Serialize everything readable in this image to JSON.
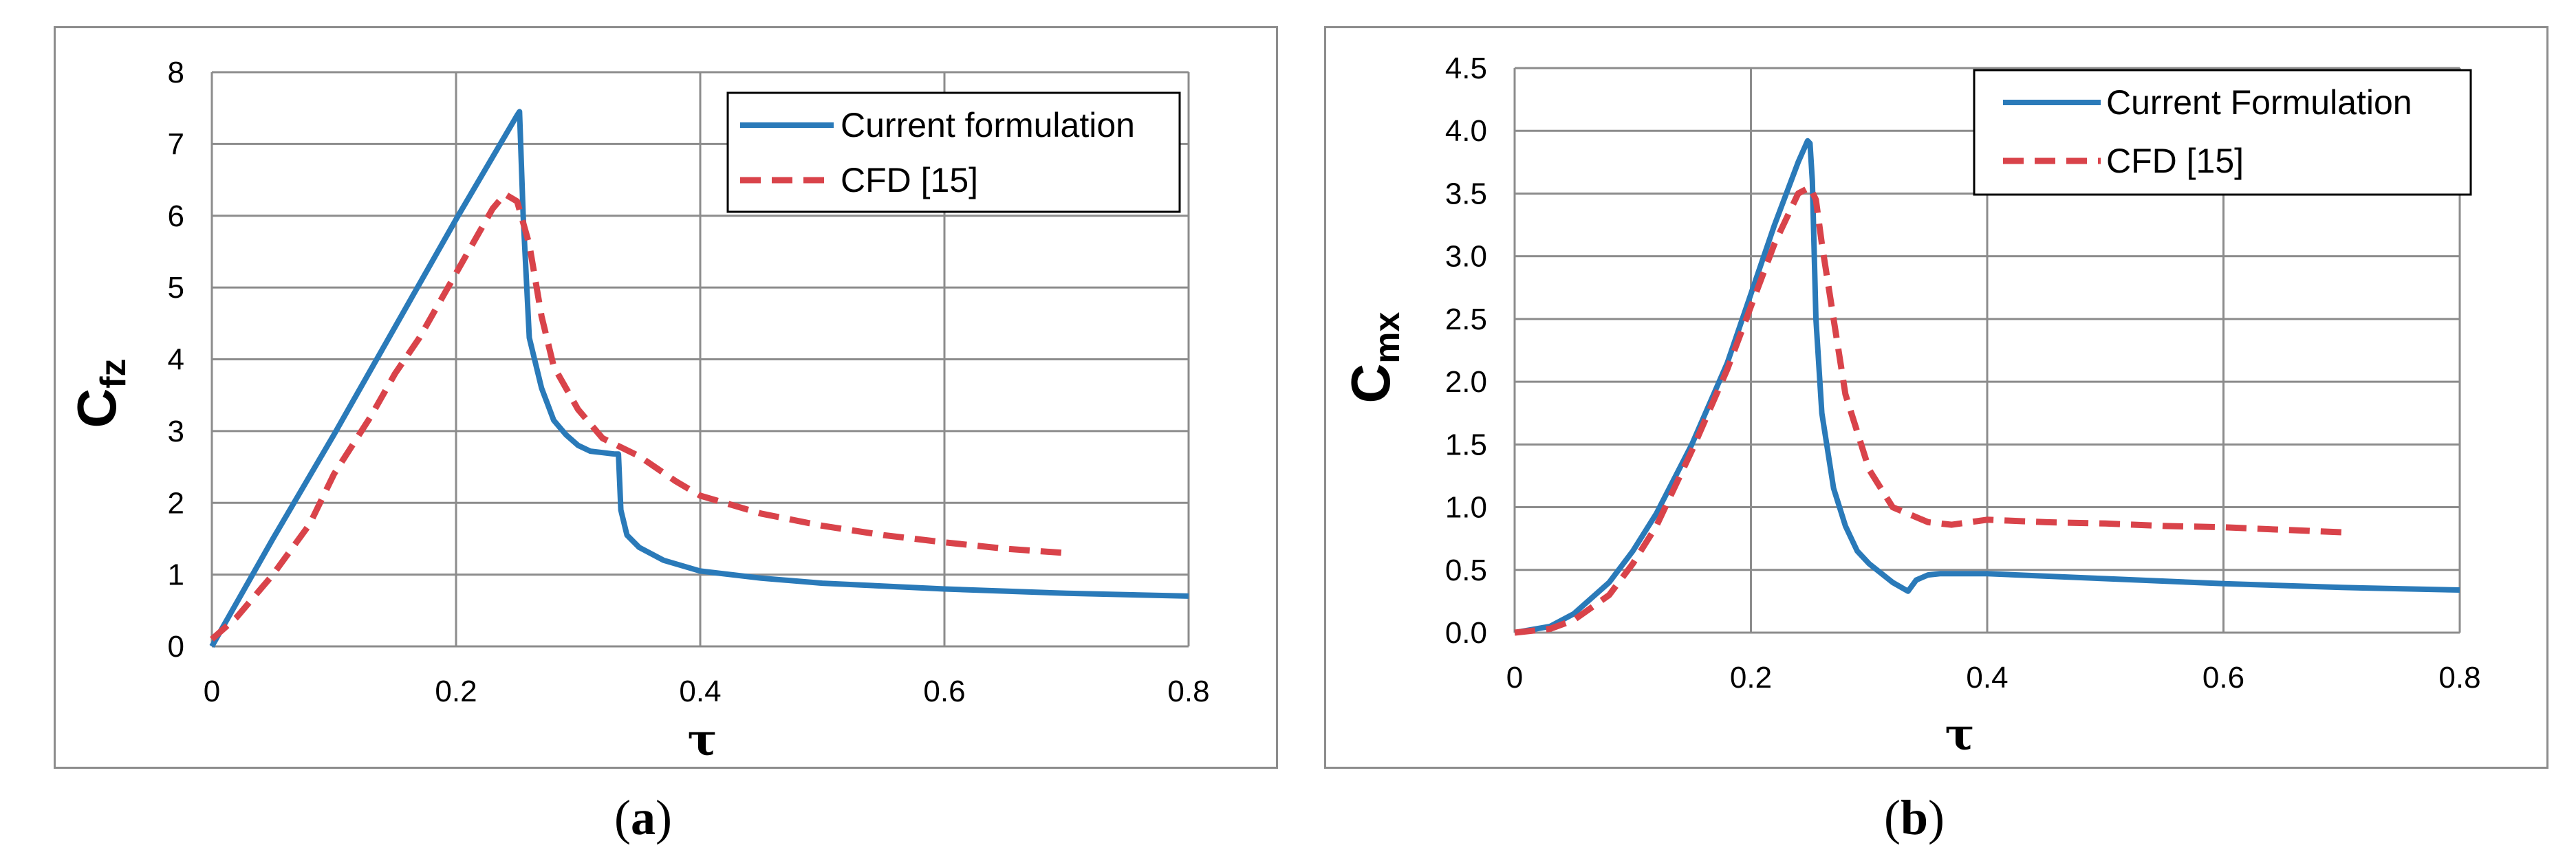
{
  "chart_data": [
    {
      "id": "a",
      "type": "line",
      "caption": "a",
      "xlabel": "τ",
      "ylabel_main": "C",
      "ylabel_sub": "fz",
      "xlim": [
        0,
        0.8
      ],
      "ylim": [
        0,
        8
      ],
      "xticks": [
        "0",
        "0.2",
        "0.4",
        "0.6",
        "0.8"
      ],
      "xtick_values": [
        0,
        0.2,
        0.4,
        0.6,
        0.8
      ],
      "yticks": [
        "0",
        "1",
        "2",
        "3",
        "4",
        "5",
        "6",
        "7",
        "8"
      ],
      "ytick_values": [
        0,
        1,
        2,
        3,
        4,
        5,
        6,
        7,
        8
      ],
      "grid": true,
      "legend_position": "top-right",
      "series": [
        {
          "name": "Current formulation",
          "color": "#2a7ab9",
          "style": "solid",
          "x": [
            0,
            0.05,
            0.1,
            0.15,
            0.2,
            0.25,
            0.252,
            0.255,
            0.26,
            0.27,
            0.28,
            0.29,
            0.3,
            0.31,
            0.32,
            0.33,
            0.333,
            0.335,
            0.34,
            0.35,
            0.37,
            0.4,
            0.45,
            0.5,
            0.6,
            0.7,
            0.8
          ],
          "y": [
            0,
            1.5,
            2.95,
            4.45,
            5.95,
            7.4,
            7.45,
            6.0,
            4.3,
            3.6,
            3.15,
            2.95,
            2.8,
            2.72,
            2.7,
            2.68,
            2.68,
            1.9,
            1.55,
            1.38,
            1.2,
            1.05,
            0.95,
            0.88,
            0.8,
            0.74,
            0.7
          ]
        },
        {
          "name": "CFD [15]",
          "color": "#d9434a",
          "style": "dashed",
          "x": [
            0,
            0.02,
            0.05,
            0.08,
            0.1,
            0.13,
            0.15,
            0.17,
            0.2,
            0.22,
            0.23,
            0.24,
            0.25,
            0.26,
            0.27,
            0.28,
            0.3,
            0.32,
            0.35,
            0.38,
            0.4,
            0.45,
            0.5,
            0.55,
            0.6,
            0.65,
            0.7
          ],
          "y": [
            0.1,
            0.4,
            1.0,
            1.7,
            2.4,
            3.2,
            3.8,
            4.3,
            5.2,
            5.8,
            6.1,
            6.3,
            6.2,
            5.6,
            4.6,
            3.9,
            3.3,
            2.9,
            2.65,
            2.3,
            2.1,
            1.85,
            1.68,
            1.55,
            1.45,
            1.36,
            1.3
          ]
        }
      ]
    },
    {
      "id": "b",
      "type": "line",
      "caption": "b",
      "xlabel": "τ",
      "ylabel_main": "C",
      "ylabel_sub": "mx",
      "xlim": [
        0,
        0.8
      ],
      "ylim": [
        0,
        4.5
      ],
      "xticks": [
        "0",
        "0.2",
        "0.4",
        "0.6",
        "0.8"
      ],
      "xtick_values": [
        0,
        0.2,
        0.4,
        0.6,
        0.8
      ],
      "yticks": [
        "0.0",
        "0.5",
        "1.0",
        "1.5",
        "2.0",
        "2.5",
        "3.0",
        "3.5",
        "4.0",
        "4.5"
      ],
      "ytick_values": [
        0,
        0.5,
        1.0,
        1.5,
        2.0,
        2.5,
        3.0,
        3.5,
        4.0,
        4.5
      ],
      "grid": true,
      "legend_position": "top-right",
      "series": [
        {
          "name": "Current Formulation",
          "color": "#2a7ab9",
          "style": "solid",
          "x": [
            0,
            0.03,
            0.05,
            0.08,
            0.1,
            0.12,
            0.15,
            0.18,
            0.2,
            0.22,
            0.24,
            0.248,
            0.25,
            0.252,
            0.255,
            0.26,
            0.27,
            0.28,
            0.29,
            0.3,
            0.32,
            0.333,
            0.34,
            0.35,
            0.36,
            0.4,
            0.5,
            0.6,
            0.7,
            0.8
          ],
          "y": [
            0,
            0.05,
            0.15,
            0.4,
            0.65,
            0.95,
            1.5,
            2.15,
            2.7,
            3.25,
            3.75,
            3.92,
            3.9,
            3.6,
            2.5,
            1.75,
            1.15,
            0.85,
            0.65,
            0.55,
            0.4,
            0.33,
            0.42,
            0.46,
            0.47,
            0.47,
            0.43,
            0.39,
            0.36,
            0.34
          ]
        },
        {
          "name": "CFD [15]",
          "color": "#d9434a",
          "style": "dashed",
          "x": [
            0,
            0.03,
            0.05,
            0.08,
            0.1,
            0.12,
            0.15,
            0.18,
            0.2,
            0.22,
            0.24,
            0.25,
            0.255,
            0.26,
            0.27,
            0.28,
            0.3,
            0.32,
            0.35,
            0.37,
            0.4,
            0.45,
            0.5,
            0.55,
            0.6,
            0.65,
            0.7
          ],
          "y": [
            0,
            0.03,
            0.1,
            0.3,
            0.55,
            0.85,
            1.45,
            2.1,
            2.6,
            3.1,
            3.5,
            3.55,
            3.45,
            3.1,
            2.5,
            1.9,
            1.3,
            1.0,
            0.88,
            0.86,
            0.9,
            0.88,
            0.87,
            0.85,
            0.84,
            0.82,
            0.8
          ]
        }
      ]
    }
  ]
}
